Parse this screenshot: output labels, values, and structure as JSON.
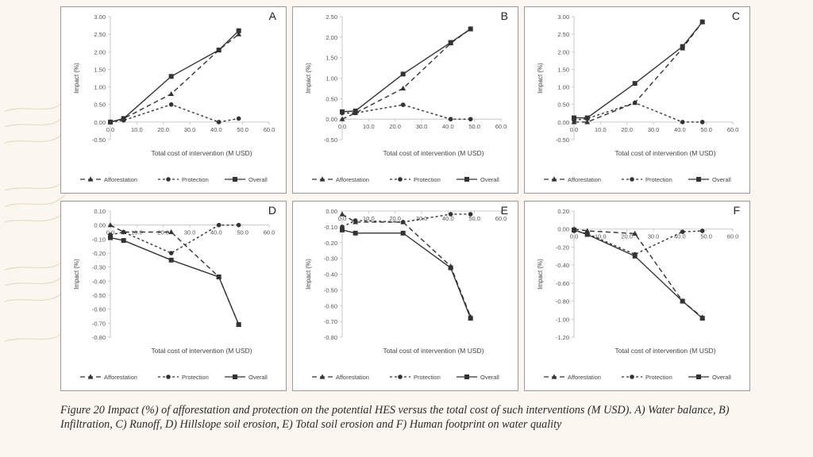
{
  "caption": "Figure 20 Impact (%) of afforestation and protection on the potential HES versus the total cost of such interventions (M USD). A) Water balance, B) Infiltration, C) Runoff, D) Hillslope soil erosion, E) Total soil erosion and F) Human footprint on water quality",
  "colors": {
    "line": "#333333",
    "background": "#fbf6ef",
    "panel": "#ffffff"
  },
  "chart_data": [
    {
      "type": "line",
      "panel_label": "A",
      "xlabel": "Total cost of intervention (M USD)",
      "ylabel": "Impact (%)",
      "xlim": [
        0,
        60
      ],
      "ylim": [
        -0.5,
        3.0
      ],
      "xticks": [
        "0.0",
        "10.0",
        "20.0",
        "30.0",
        "40.0",
        "50.0",
        "60.0"
      ],
      "yticks": [
        "-0.50",
        "0.00",
        "0.50",
        "1.00",
        "1.50",
        "2.00",
        "2.50",
        "3.00"
      ],
      "series": [
        {
          "name": "Afforestation",
          "x": [
            0,
            5,
            23,
            41,
            48.5
          ],
          "y": [
            0,
            0.1,
            0.8,
            2.05,
            2.5
          ]
        },
        {
          "name": "Protection",
          "x": [
            0,
            5,
            23,
            41,
            48.5
          ],
          "y": [
            0,
            0.05,
            0.5,
            0,
            0.1
          ]
        },
        {
          "name": "Overall",
          "x": [
            0,
            5,
            23,
            41,
            48.5
          ],
          "y": [
            0,
            0.1,
            1.3,
            2.05,
            2.6
          ]
        }
      ]
    },
    {
      "type": "line",
      "panel_label": "B",
      "xlabel": "Total cost of intervention (M USD)",
      "ylabel": "Impact (%)",
      "xlim": [
        0,
        60
      ],
      "ylim": [
        -0.5,
        2.5
      ],
      "xticks": [
        "0.0",
        "10.0",
        "20.0",
        "30.0",
        "40.0",
        "50.0",
        "60.0"
      ],
      "yticks": [
        "-0.50",
        "0.00",
        "0.50",
        "1.00",
        "1.50",
        "2.00",
        "2.50"
      ],
      "series": [
        {
          "name": "Afforestation",
          "x": [
            0,
            5,
            23,
            41,
            48.5
          ],
          "y": [
            0,
            0.15,
            0.75,
            1.85,
            2.2
          ]
        },
        {
          "name": "Protection",
          "x": [
            0,
            5,
            23,
            41,
            48.5
          ],
          "y": [
            0.15,
            0.15,
            0.35,
            0,
            0
          ]
        },
        {
          "name": "Overall",
          "x": [
            0,
            5,
            23,
            41,
            48.5
          ],
          "y": [
            0.18,
            0.2,
            1.1,
            1.87,
            2.2
          ]
        }
      ]
    },
    {
      "type": "line",
      "panel_label": "C",
      "xlabel": "Total cost of intervention (M USD)",
      "ylabel": "Impact (%)",
      "xlim": [
        0,
        60
      ],
      "ylim": [
        -0.5,
        3.0
      ],
      "xticks": [
        "0.0",
        "10.0",
        "20.0",
        "30.0",
        "40.0",
        "50.0",
        "60.0"
      ],
      "yticks": [
        "-0.50",
        "0.00",
        "0.50",
        "1.00",
        "1.50",
        "2.00",
        "2.50",
        "3.00"
      ],
      "series": [
        {
          "name": "Afforestation",
          "x": [
            0,
            5,
            23,
            41,
            48.5
          ],
          "y": [
            0,
            0,
            0.55,
            2.1,
            2.85
          ]
        },
        {
          "name": "Protection",
          "x": [
            0,
            5,
            23,
            41,
            48.5
          ],
          "y": [
            0.05,
            0.1,
            0.55,
            0,
            0
          ]
        },
        {
          "name": "Overall",
          "x": [
            0,
            5,
            23,
            41,
            48.5
          ],
          "y": [
            0.12,
            0.12,
            1.1,
            2.15,
            2.85
          ]
        }
      ]
    },
    {
      "type": "line",
      "panel_label": "D",
      "xlabel": "Total cost of intervention (M USD)",
      "ylabel": "Impact (%)",
      "xlim": [
        0,
        60
      ],
      "ylim": [
        -0.8,
        0.1
      ],
      "xticks": [
        "0.0",
        "10.0",
        "20.0",
        "30.0",
        "40.0",
        "50.0",
        "60.0"
      ],
      "yticks": [
        "-0.80",
        "-0.70",
        "-0.60",
        "-0.50",
        "-0.40",
        "-0.30",
        "-0.20",
        "-0.10",
        "0.00",
        "0.10"
      ],
      "series": [
        {
          "name": "Afforestation",
          "x": [
            0,
            5,
            23,
            41,
            48.5
          ],
          "y": [
            0,
            -0.05,
            -0.05,
            -0.37,
            -0.71
          ]
        },
        {
          "name": "Protection",
          "x": [
            0,
            5,
            23,
            41,
            48.5
          ],
          "y": [
            -0.07,
            -0.05,
            -0.2,
            0,
            0
          ]
        },
        {
          "name": "Overall",
          "x": [
            0,
            5,
            23,
            41,
            48.5
          ],
          "y": [
            -0.09,
            -0.11,
            -0.25,
            -0.37,
            -0.71
          ]
        }
      ]
    },
    {
      "type": "line",
      "panel_label": "E",
      "xlabel": "Total cost of intervention (M USD)",
      "ylabel": "Impact (%)",
      "xlim": [
        0,
        60
      ],
      "ylim": [
        -0.8,
        0.0
      ],
      "xticks": [
        "0.0",
        "10.0",
        "20.0",
        "30.0",
        "40.0",
        "50.0",
        "60.0"
      ],
      "yticks": [
        "-0.80",
        "-0.70",
        "-0.60",
        "-0.50",
        "-0.40",
        "-0.30",
        "-0.20",
        "-0.10",
        "0.00"
      ],
      "series": [
        {
          "name": "Afforestation",
          "x": [
            0,
            5,
            23,
            41,
            48.5
          ],
          "y": [
            -0.02,
            -0.07,
            -0.07,
            -0.35,
            -0.67
          ]
        },
        {
          "name": "Protection",
          "x": [
            0,
            5,
            23,
            41,
            48.5
          ],
          "y": [
            -0.1,
            -0.06,
            -0.07,
            -0.02,
            -0.02
          ]
        },
        {
          "name": "Overall",
          "x": [
            0,
            5,
            23,
            41,
            48.5
          ],
          "y": [
            -0.12,
            -0.14,
            -0.14,
            -0.36,
            -0.68
          ]
        }
      ]
    },
    {
      "type": "line",
      "panel_label": "F",
      "xlabel": "Total cost of intervention (M USD)",
      "ylabel": "Impact (%)",
      "xlim": [
        0,
        60
      ],
      "ylim": [
        -1.2,
        0.2
      ],
      "xticks": [
        "0.0",
        "10.0",
        "20.0",
        "30.0",
        "40.0",
        "50.0",
        "60.0"
      ],
      "yticks": [
        "-1.20",
        "-1.00",
        "-0.80",
        "-0.60",
        "-0.40",
        "-0.20",
        "0.00",
        "0.20"
      ],
      "series": [
        {
          "name": "Afforestation",
          "x": [
            0,
            5,
            23,
            41,
            48.5
          ],
          "y": [
            0,
            -0.02,
            -0.05,
            -0.8,
            -0.98
          ]
        },
        {
          "name": "Protection",
          "x": [
            0,
            5,
            23,
            41,
            48.5
          ],
          "y": [
            -0.02,
            -0.05,
            -0.28,
            -0.03,
            -0.02
          ]
        },
        {
          "name": "Overall",
          "x": [
            0,
            5,
            23,
            41,
            48.5
          ],
          "y": [
            -0.01,
            -0.06,
            -0.3,
            -0.8,
            -0.99
          ]
        }
      ]
    }
  ]
}
